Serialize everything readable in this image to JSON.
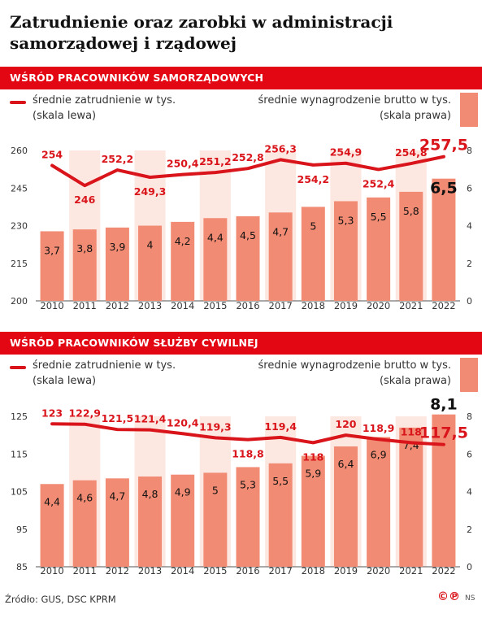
{
  "title": "Zatrudnienie oraz zarobki w administracji samorządowej i rządowej",
  "source": "Źródło: GUS, DSC KPRM",
  "logo_text": "©℗",
  "logo_suffix": "NS",
  "colors": {
    "accent": "#e30613",
    "line": "#d9141a",
    "bar": "#f18b73",
    "bar_highlight": "#fde8e1"
  },
  "chart_data": [
    {
      "type": "bar",
      "title": "WŚRÓD PRACOWNIKÓW SAMORZĄDOWYCH",
      "legend_line_label": "średnie zatrudnienie w tys.\n(skala lewa)",
      "legend_bar_label": "średnie wynagrodzenie brutto w tys.\n(skala prawa)",
      "categories": [
        "2010",
        "2011",
        "2012",
        "2013",
        "2014",
        "2015",
        "2016",
        "2017",
        "2018",
        "2019",
        "2020",
        "2021",
        "2022"
      ],
      "series": [
        {
          "name": "średnie wynagrodzenie brutto w tys.",
          "axis": "right",
          "kind": "bar",
          "values": [
            3.7,
            3.8,
            3.9,
            4,
            4.2,
            4.4,
            4.5,
            4.7,
            5,
            5.3,
            5.5,
            5.8,
            6.5
          ],
          "labels": [
            "3,7",
            "3,8",
            "3,9",
            "4",
            "4,2",
            "4,4",
            "4,5",
            "4,7",
            "5",
            "5,3",
            "5,5",
            "5,8",
            "6,5"
          ]
        },
        {
          "name": "średnie zatrudnienie w tys.",
          "axis": "left",
          "kind": "line",
          "values": [
            254,
            246,
            252.2,
            249.3,
            250.4,
            251.2,
            252.8,
            256.3,
            254.2,
            254.9,
            252.4,
            254.8,
            257.5
          ],
          "labels": [
            "254",
            "246",
            "252,2",
            "249,3",
            "250,4",
            "251,2",
            "252,8",
            "256,3",
            "254,2",
            "254,9",
            "252,4",
            "254,8",
            "257,5"
          ]
        }
      ],
      "left_axis": {
        "range": [
          200,
          260
        ],
        "ticks": [
          "200",
          "215",
          "230",
          "245",
          "260"
        ]
      },
      "right_axis": {
        "range": [
          0,
          8
        ],
        "ticks": [
          "0",
          "2",
          "4",
          "6",
          "8"
        ]
      },
      "grid": false
    },
    {
      "type": "bar",
      "title": "WŚRÓD PRACOWNIKÓW SŁUŻBY CYWILNEJ",
      "legend_line_label": "średnie zatrudnienie w tys.\n(skala lewa)",
      "legend_bar_label": "średnie wynagrodzenie brutto w tys.\n(skala prawa)",
      "categories": [
        "2010",
        "2011",
        "2012",
        "2013",
        "2014",
        "2015",
        "2016",
        "2017",
        "2018",
        "2019",
        "2020",
        "2021",
        "2022"
      ],
      "series": [
        {
          "name": "średnie wynagrodzenie brutto w tys.",
          "axis": "right",
          "kind": "bar",
          "values": [
            4.4,
            4.6,
            4.7,
            4.8,
            4.9,
            5,
            5.3,
            5.5,
            5.9,
            6.4,
            6.9,
            7.4,
            8.1
          ],
          "labels": [
            "4,4",
            "4,6",
            "4,7",
            "4,8",
            "4,9",
            "5",
            "5,3",
            "5,5",
            "5,9",
            "6,4",
            "6,9",
            "7,4",
            "8,1"
          ]
        },
        {
          "name": "średnie zatrudnienie w tys.",
          "axis": "left",
          "kind": "line",
          "values": [
            123,
            122.9,
            121.5,
            121.4,
            120.4,
            119.3,
            118.8,
            119.4,
            118,
            120,
            118.9,
            118,
            117.5
          ],
          "labels": [
            "123",
            "122,9",
            "121,5",
            "121,4",
            "120,4",
            "119,3",
            "118,8",
            "119,4",
            "118",
            "120",
            "118,9",
            "118",
            "117,5"
          ]
        }
      ],
      "left_axis": {
        "range": [
          85,
          125
        ],
        "ticks": [
          "85",
          "95",
          "105",
          "115",
          "125"
        ]
      },
      "right_axis": {
        "range": [
          0,
          8
        ],
        "ticks": [
          "0",
          "2",
          "4",
          "6",
          "8"
        ]
      },
      "grid": false
    }
  ]
}
